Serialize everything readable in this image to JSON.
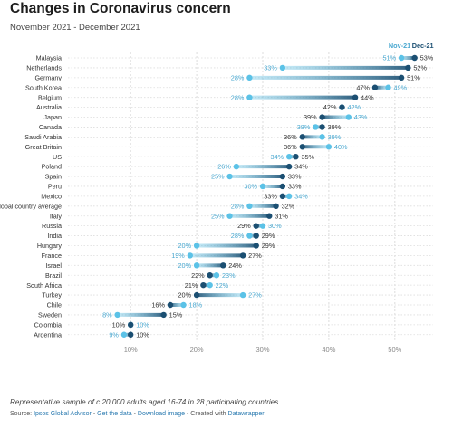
{
  "header": {
    "title": "Changes in Coronavirus concern",
    "subtitle": "November 2021 - December 2021"
  },
  "footer": {
    "notes": "Representative sample of c.20,000 adults aged 16-74 in 28 participating countries.",
    "source_prefix": "Source: ",
    "source_link": "Ipsos Global Advisor",
    "sep1": " - ",
    "get_data": "Get the data",
    "sep2": " - ",
    "download_image": "Download image",
    "created_with": " - Created with ",
    "datawrapper": "Datawrapper"
  },
  "colors": {
    "nov": "#5bc2e7",
    "dec": "#1b4f72",
    "nov_label": "#4aa8d0",
    "grid": "#dddddd"
  },
  "chart_data": {
    "type": "dot-range",
    "xlim": [
      0,
      55
    ],
    "x_ticks": [
      10,
      20,
      30,
      40,
      50
    ],
    "x_tick_labels": [
      "10%",
      "20%",
      "30%",
      "40%",
      "50%"
    ],
    "series_names": [
      "Nov-21",
      "Dec-21"
    ],
    "rows": [
      {
        "label": "Malaysia",
        "nov": 51,
        "dec": 53
      },
      {
        "label": "Netherlands",
        "nov": 33,
        "dec": 52
      },
      {
        "label": "Germany",
        "nov": 28,
        "dec": 51
      },
      {
        "label": "South Korea",
        "nov": 49,
        "dec": 47
      },
      {
        "label": "Belgium",
        "nov": 28,
        "dec": 44
      },
      {
        "label": "Australia",
        "nov": 42,
        "dec": 42
      },
      {
        "label": "Japan",
        "nov": 43,
        "dec": 39
      },
      {
        "label": "Canada",
        "nov": 38,
        "dec": 39
      },
      {
        "label": "Saudi Arabia",
        "nov": 39,
        "dec": 36
      },
      {
        "label": "Great Britain",
        "nov": 40,
        "dec": 36
      },
      {
        "label": "US",
        "nov": 34,
        "dec": 35
      },
      {
        "label": "Poland",
        "nov": 26,
        "dec": 34
      },
      {
        "label": "Spain",
        "nov": 25,
        "dec": 33
      },
      {
        "label": "Peru",
        "nov": 30,
        "dec": 33
      },
      {
        "label": "Mexico",
        "nov": 34,
        "dec": 33
      },
      {
        "label": "Global country average",
        "nov": 28,
        "dec": 32
      },
      {
        "label": "Italy",
        "nov": 25,
        "dec": 31
      },
      {
        "label": "Russia",
        "nov": 30,
        "dec": 29
      },
      {
        "label": "India",
        "nov": 28,
        "dec": 29
      },
      {
        "label": "Hungary",
        "nov": 20,
        "dec": 29
      },
      {
        "label": "France",
        "nov": 19,
        "dec": 27
      },
      {
        "label": "Israel",
        "nov": 20,
        "dec": 24
      },
      {
        "label": "Brazil",
        "nov": 23,
        "dec": 22
      },
      {
        "label": "South Africa",
        "nov": 22,
        "dec": 21
      },
      {
        "label": "Turkey",
        "nov": 27,
        "dec": 20
      },
      {
        "label": "Chile",
        "nov": 18,
        "dec": 16
      },
      {
        "label": "Sweden",
        "nov": 8,
        "dec": 15
      },
      {
        "label": "Colombia",
        "nov": 10,
        "dec": 10
      },
      {
        "label": "Argentina",
        "nov": 9,
        "dec": 10
      }
    ]
  }
}
